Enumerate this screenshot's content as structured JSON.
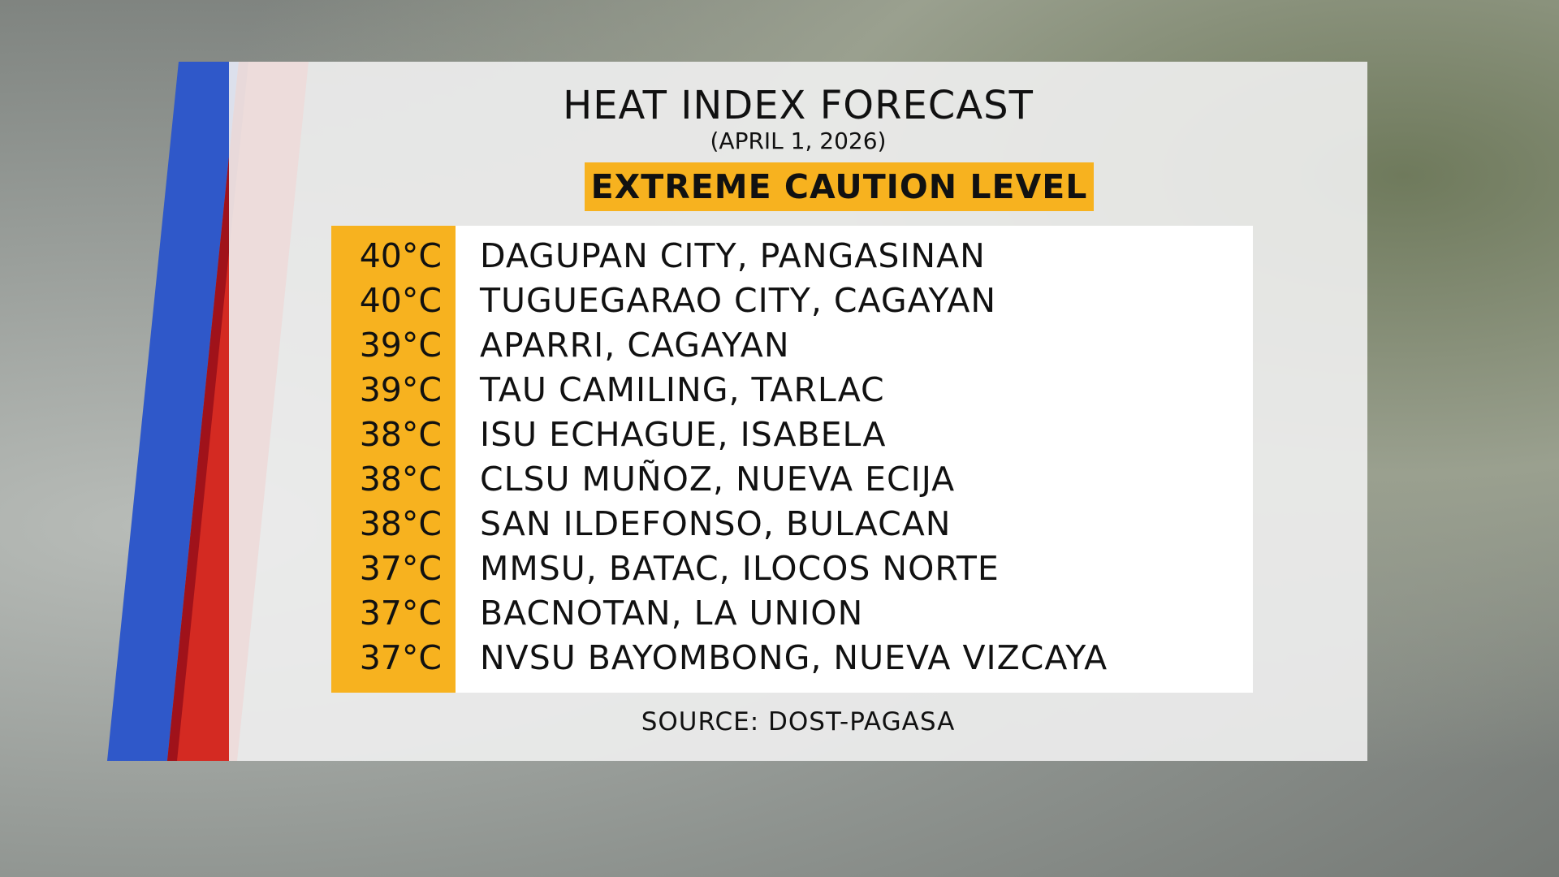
{
  "header": {
    "title": "HEAT INDEX FORECAST",
    "date": "(APRIL 1, 2026)",
    "level": "EXTREME CAUTION LEVEL"
  },
  "table": {
    "rows": [
      [
        "40°C",
        "DAGUPAN CITY, PANGASINAN"
      ],
      [
        "40°C",
        "TUGUEGARAO CITY, CAGAYAN"
      ],
      [
        "39°C",
        "APARRI, CAGAYAN"
      ],
      [
        "39°C",
        "TAU CAMILING, TARLAC"
      ],
      [
        "38°C",
        "ISU ECHAGUE, ISABELA"
      ],
      [
        "38°C",
        "CLSU MUÑOZ, NUEVA ECIJA"
      ],
      [
        "38°C",
        "SAN ILDEFONSO, BULACAN"
      ],
      [
        "37°C",
        "MMSU, BATAC, ILOCOS NORTE"
      ],
      [
        "37°C",
        "BACNOTAN, LA UNION"
      ],
      [
        "37°C",
        "NVSU BAYOMBONG, NUEVA VIZCAYA"
      ]
    ]
  },
  "footer": {
    "source": "SOURCE: DOST-PAGASA"
  }
}
